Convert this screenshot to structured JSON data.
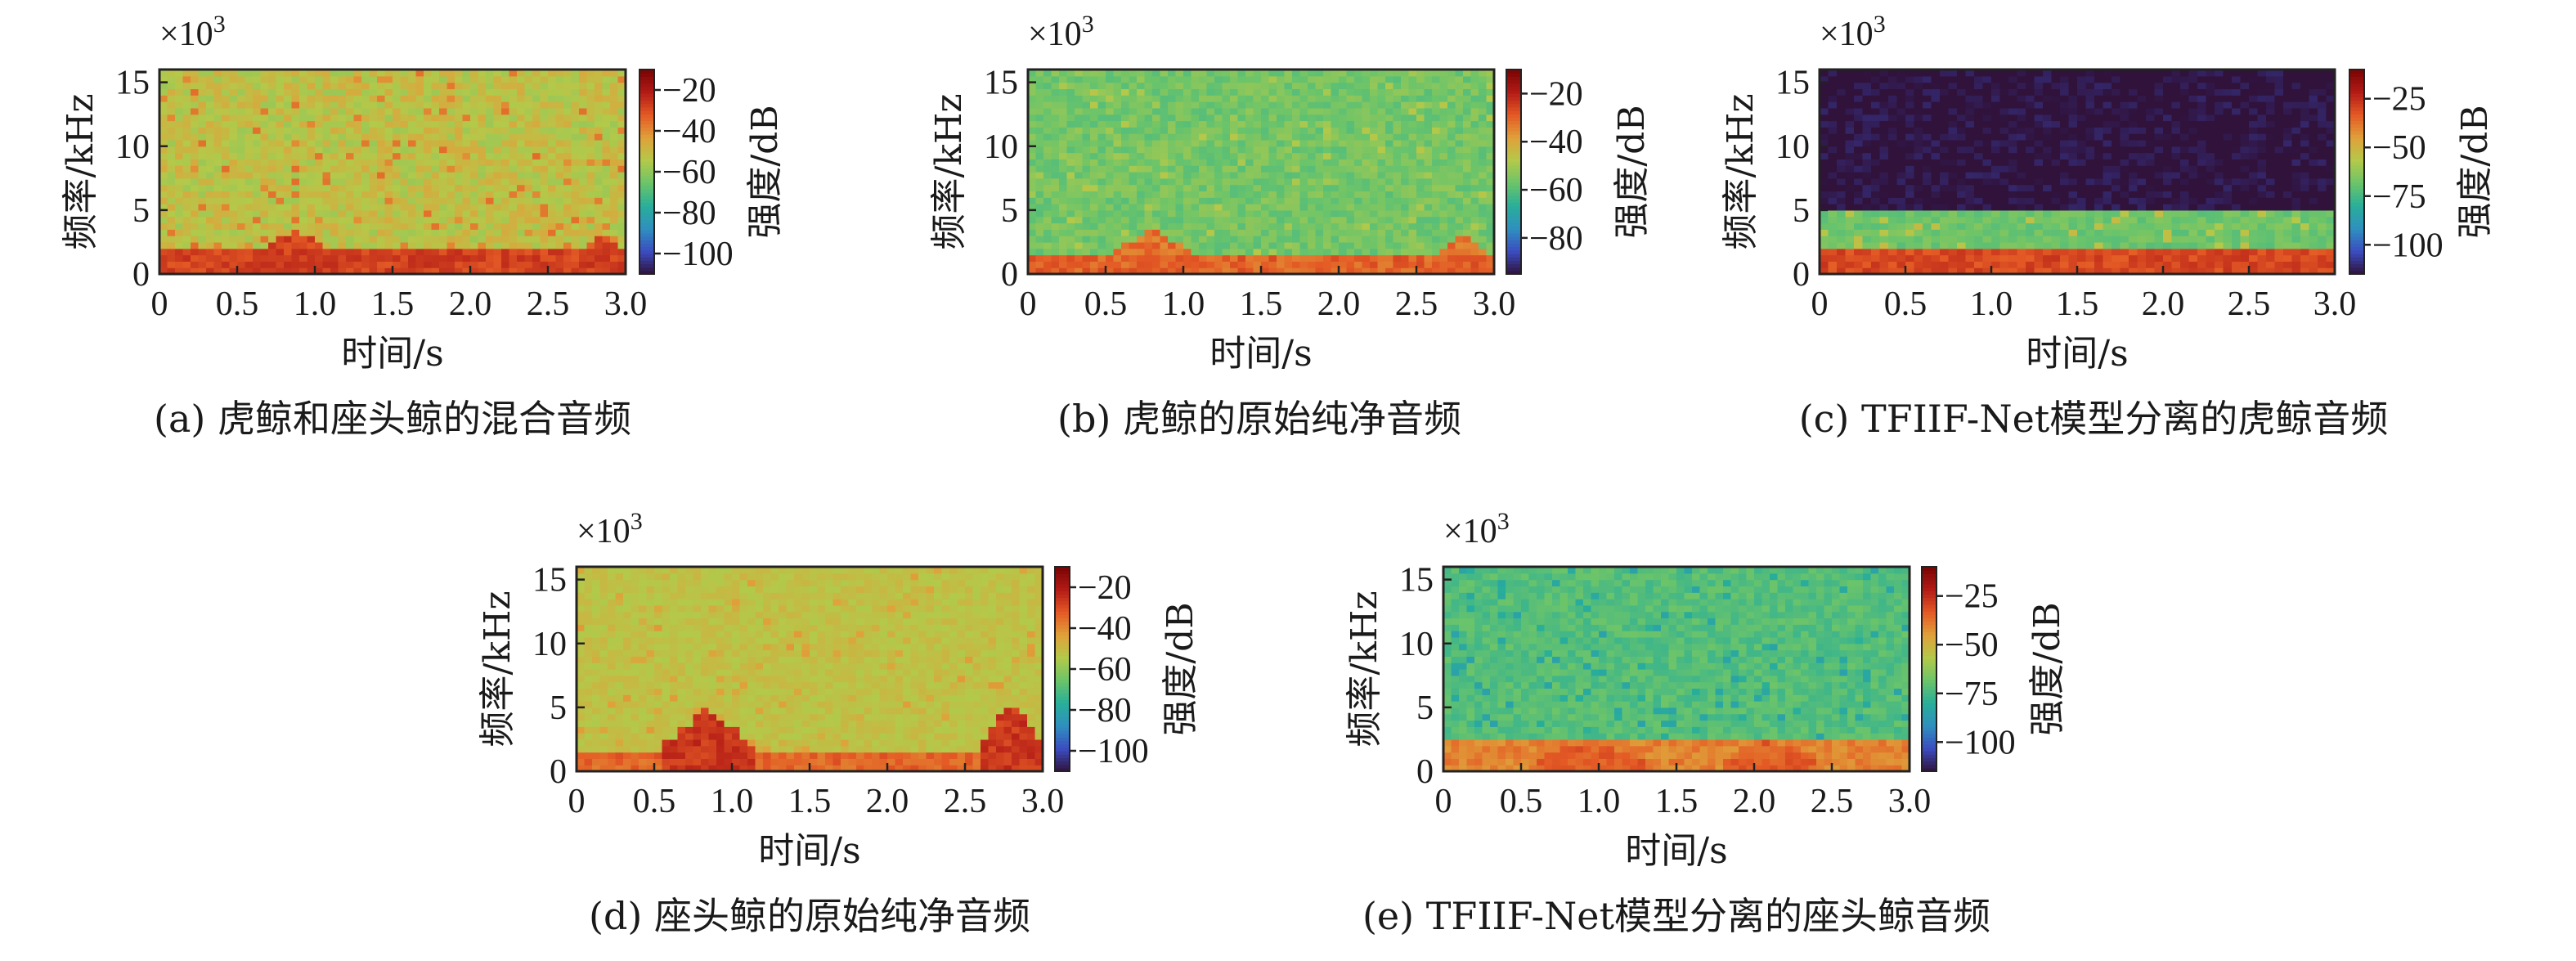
{
  "chart_data": [
    {
      "id": "a",
      "type": "heatmap",
      "caption": "(a) 虎鲸和座头鲸的混合音频",
      "xlabel": "时间/s",
      "ylabel": "频率/kHz",
      "y_multiplier": "×10",
      "y_multiplier_exp": "3",
      "xticks": [
        "0",
        "0.5",
        "1.0",
        "1.5",
        "2.0",
        "2.5",
        "3.0"
      ],
      "yticks": [
        "0",
        "5",
        "10",
        "15"
      ],
      "xlim": [
        0,
        3.0
      ],
      "ylim": [
        0,
        16
      ],
      "colorbar_label": "强度/dB",
      "colorbar_ticks": [
        -20,
        -40,
        -60,
        -80,
        -100
      ],
      "colorbar_range": [
        -110,
        -10
      ],
      "field": {
        "background_db": -52,
        "noise_db": 6,
        "speckle_db": -38,
        "low_band_db": -28,
        "low_band_khz": 2,
        "harmonics": [
          {
            "t": [
              0.55,
              1.2
            ],
            "fmax": 3.5,
            "db": -28
          },
          {
            "t": [
              2.7,
              3.0
            ],
            "fmax": 3.5,
            "db": -30
          }
        ]
      }
    },
    {
      "id": "b",
      "type": "heatmap",
      "caption": "(b) 虎鲸的原始纯净音频",
      "xlabel": "时间/s",
      "ylabel": "频率/kHz",
      "y_multiplier": "×10",
      "y_multiplier_exp": "3",
      "xticks": [
        "0",
        "0.5",
        "1.0",
        "1.5",
        "2.0",
        "2.5",
        "3.0"
      ],
      "yticks": [
        "0",
        "5",
        "10",
        "15"
      ],
      "xlim": [
        0,
        3.0
      ],
      "ylim": [
        0,
        16
      ],
      "colorbar_label": "强度/dB",
      "colorbar_ticks": [
        -20,
        -40,
        -60,
        -80
      ],
      "colorbar_range": [
        -95,
        -10
      ],
      "field": {
        "background_db": -56,
        "noise_db": 4,
        "speckle_db": -50,
        "low_band_db": -30,
        "low_band_khz": 1.5,
        "harmonics": [
          {
            "t": [
              0.5,
              1.1
            ],
            "fmax": 3.5,
            "db": -32
          },
          {
            "t": [
              2.6,
              3.0
            ],
            "fmax": 3.5,
            "db": -32
          }
        ]
      }
    },
    {
      "id": "c",
      "type": "heatmap",
      "caption": "(c) TFIIF-Net模型分离的虎鲸音频",
      "xlabel": "时间/s",
      "ylabel": "频率/kHz",
      "y_multiplier": "×10",
      "y_multiplier_exp": "3",
      "xticks": [
        "0",
        "0.5",
        "1.0",
        "1.5",
        "2.0",
        "2.5",
        "3.0"
      ],
      "yticks": [
        "0",
        "5",
        "10",
        "15"
      ],
      "xlim": [
        0,
        3.0
      ],
      "ylim": [
        0,
        16
      ],
      "colorbar_label": "强度/dB",
      "colorbar_ticks": [
        -25,
        -50,
        -75,
        -100
      ],
      "colorbar_range": [
        -115,
        -10
      ],
      "field": {
        "background_db": -115,
        "cutoff_khz": 5,
        "below_cutoff_db": -68,
        "noise_db": 4,
        "speckle_db": -55,
        "low_band_db": -30,
        "low_band_khz": 2.2,
        "harmonics": []
      }
    },
    {
      "id": "d",
      "type": "heatmap",
      "caption": "(d) 座头鲸的原始纯净音频",
      "xlabel": "时间/s",
      "ylabel": "频率/kHz",
      "y_multiplier": "×10",
      "y_multiplier_exp": "3",
      "xticks": [
        "0",
        "0.5",
        "1.0",
        "1.5",
        "2.0",
        "2.5",
        "3.0"
      ],
      "yticks": [
        "0",
        "5",
        "10",
        "15"
      ],
      "xlim": [
        0,
        3.0
      ],
      "ylim": [
        0,
        16
      ],
      "colorbar_label": "强度/dB",
      "colorbar_ticks": [
        -20,
        -40,
        -60,
        -80,
        -100
      ],
      "colorbar_range": [
        -110,
        -10
      ],
      "field": {
        "background_db": -52,
        "noise_db": 3,
        "speckle_db": -45,
        "low_band_db": -34,
        "low_band_khz": 1.6,
        "harmonics": [
          {
            "t": [
              0.55,
              1.15
            ],
            "fmax": 5,
            "db": -26
          },
          {
            "t": [
              2.6,
              3.0
            ],
            "fmax": 5.5,
            "db": -26
          }
        ]
      }
    },
    {
      "id": "e",
      "type": "heatmap",
      "caption": "(e) TFIIF-Net模型分离的座头鲸音频",
      "xlabel": "时间/s",
      "ylabel": "频率/kHz",
      "y_multiplier": "×10",
      "y_multiplier_exp": "3",
      "xticks": [
        "0",
        "0.5",
        "1.0",
        "1.5",
        "2.0",
        "2.5",
        "3.0"
      ],
      "yticks": [
        "0",
        "5",
        "10",
        "15"
      ],
      "xlim": [
        0,
        3.0
      ],
      "ylim": [
        0,
        16
      ],
      "colorbar_label": "强度/dB",
      "colorbar_ticks": [
        -25,
        -50,
        -75,
        -100
      ],
      "colorbar_range": [
        -115,
        -10
      ],
      "field": {
        "background_db": -72,
        "noise_db": 4,
        "speckle_db": -82,
        "low_band_db": -40,
        "low_band_khz": 2.5,
        "harmonics": [
          {
            "t": [
              0.6,
              1.3
            ],
            "fmax": 2.5,
            "db": -34
          },
          {
            "t": [
              1.8,
              2.4
            ],
            "fmax": 2.5,
            "db": -34
          }
        ]
      }
    }
  ],
  "colormap": [
    "#30123b",
    "#3b4cc0",
    "#2f8fbf",
    "#28ae9a",
    "#6bc46a",
    "#b3c94a",
    "#e0a13a",
    "#e45a25",
    "#b31b16",
    "#7a0403"
  ]
}
